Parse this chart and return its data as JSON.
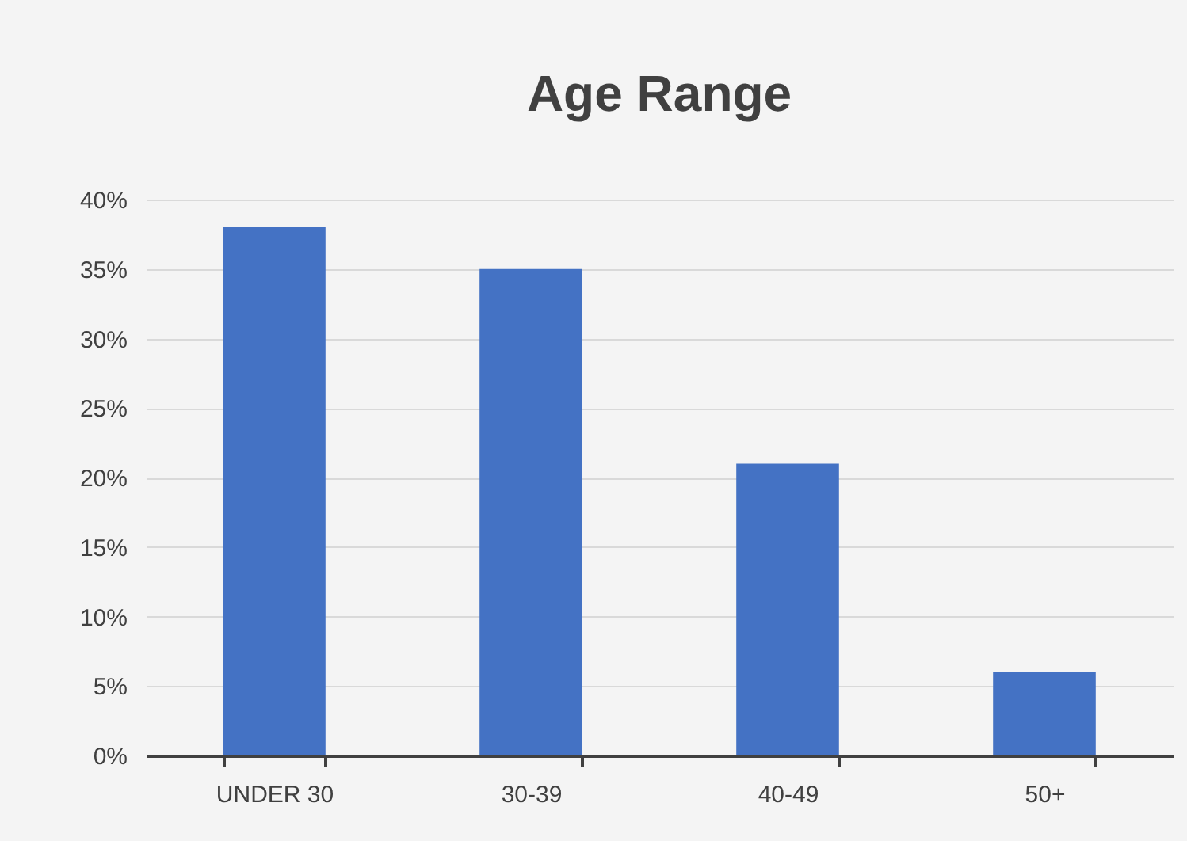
{
  "chart_data": {
    "type": "bar",
    "title": "Age Range",
    "categories": [
      "UNDER 30",
      "30-39",
      "40-49",
      "50+"
    ],
    "values": [
      38,
      35,
      21,
      6
    ],
    "color": "#4472c4",
    "ylim": [
      0,
      40
    ],
    "yticks": [
      {
        "value": 0,
        "label": "0%"
      },
      {
        "value": 5,
        "label": "5%"
      },
      {
        "value": 10,
        "label": "10%"
      },
      {
        "value": 15,
        "label": "15%"
      },
      {
        "value": 20,
        "label": "20%"
      },
      {
        "value": 25,
        "label": "25%"
      },
      {
        "value": 30,
        "label": "30%"
      },
      {
        "value": 35,
        "label": "35%"
      },
      {
        "value": 40,
        "label": "40%"
      }
    ],
    "grid": "y"
  }
}
